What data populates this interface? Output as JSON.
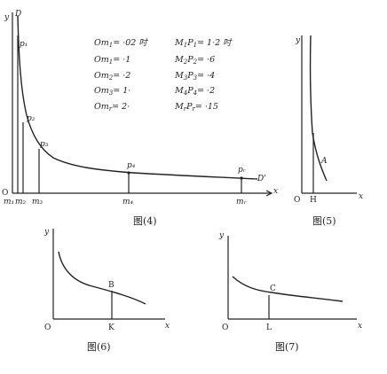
{
  "fig4": {
    "caption": "图(4)",
    "axis_labels": {
      "y": "y",
      "top": "D",
      "origin": "O",
      "x": "x",
      "end": "D'"
    },
    "point_labels": {
      "p1": "p₁",
      "p2": "p₂",
      "p3": "p₃",
      "p4": "p₄",
      "pr": "pᵣ"
    },
    "tick_labels": {
      "m1": "m₁",
      "m2": "m₂",
      "m3": "m₃",
      "m4": "m₄",
      "mr": "mᵣ"
    },
    "table_left": [
      {
        "lhs": "Om",
        "sub": "1",
        "rhs": "= ·02 吋"
      },
      {
        "lhs": "Om",
        "sub": "1",
        "rhs": "= ·1"
      },
      {
        "lhs": "Om",
        "sub": "2",
        "rhs": "= ·2"
      },
      {
        "lhs": "Om",
        "sub": "3",
        "rhs": "= 1·"
      },
      {
        "lhs": "Om",
        "sub": "r",
        "rhs": "= 2·"
      }
    ],
    "table_right": [
      {
        "lhs": "M",
        "sub1": "1",
        "mid": "P",
        "sub2": "1",
        "rhs": "= 1·2 吋"
      },
      {
        "lhs": "M",
        "sub1": "2",
        "mid": "P",
        "sub2": "2",
        "rhs": "= ·6"
      },
      {
        "lhs": "M",
        "sub1": "3",
        "mid": "P",
        "sub2": "3",
        "rhs": "= ·4"
      },
      {
        "lhs": "M",
        "sub1": "4",
        "mid": "P",
        "sub2": "4",
        "rhs": "= ·2"
      },
      {
        "lhs": "M",
        "sub1": "r",
        "mid": "P",
        "sub2": "r",
        "rhs": "= ·15"
      }
    ]
  },
  "fig5": {
    "caption": "图(5)",
    "y": "y",
    "origin": "O",
    "point": "H",
    "x": "x",
    "curve_label": "A"
  },
  "fig6": {
    "caption": "图(6)",
    "y": "y",
    "origin": "O",
    "point": "K",
    "x": "x",
    "curve_label": "B"
  },
  "fig7": {
    "caption": "图(7)",
    "y": "y",
    "origin": "O",
    "point": "L",
    "x": "x",
    "curve_label": "C"
  }
}
